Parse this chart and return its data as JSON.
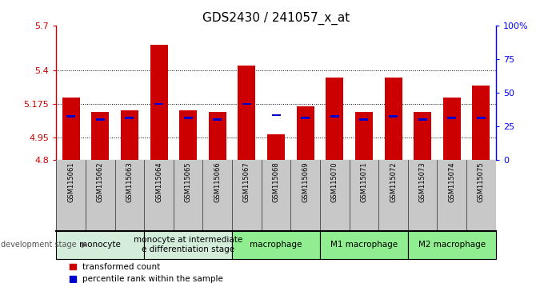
{
  "title": "GDS2430 / 241057_x_at",
  "samples": [
    "GSM115061",
    "GSM115062",
    "GSM115063",
    "GSM115064",
    "GSM115065",
    "GSM115066",
    "GSM115067",
    "GSM115068",
    "GSM115069",
    "GSM115070",
    "GSM115071",
    "GSM115072",
    "GSM115073",
    "GSM115074",
    "GSM115075"
  ],
  "red_values": [
    5.22,
    5.12,
    5.13,
    5.57,
    5.13,
    5.12,
    5.43,
    4.97,
    5.16,
    5.35,
    5.12,
    5.35,
    5.12,
    5.22,
    5.3
  ],
  "blue_values": [
    5.09,
    5.07,
    5.08,
    5.175,
    5.08,
    5.07,
    5.175,
    5.1,
    5.08,
    5.09,
    5.07,
    5.09,
    5.07,
    5.08,
    5.08
  ],
  "ymin": 4.8,
  "ymax": 5.7,
  "yticks_left": [
    4.8,
    4.95,
    5.175,
    5.4,
    5.7
  ],
  "ytick_labels_left": [
    "4.8",
    "4.95",
    "5.175",
    "5.4",
    "5.7"
  ],
  "y2min": 0,
  "y2max": 100,
  "yticks_right": [
    0,
    25,
    50,
    75,
    100
  ],
  "ytick_labels_right": [
    "0",
    "25",
    "50",
    "75",
    "100%"
  ],
  "grid_lines": [
    4.95,
    5.175,
    5.4
  ],
  "groups": [
    {
      "label": "monocyte",
      "indices": [
        0,
        1,
        2
      ],
      "color": "#d4edda"
    },
    {
      "label": "monocyte at intermediate\ne differentiation stage",
      "indices": [
        3,
        4,
        5
      ],
      "color": "#d4edda"
    },
    {
      "label": "macrophage",
      "indices": [
        6,
        7,
        8
      ],
      "color": "#90EE90"
    },
    {
      "label": "M1 macrophage",
      "indices": [
        9,
        10,
        11
      ],
      "color": "#90EE90"
    },
    {
      "label": "M2 macrophage",
      "indices": [
        12,
        13,
        14
      ],
      "color": "#90EE90"
    }
  ],
  "bar_width": 0.6,
  "blue_bar_width": 0.3,
  "blue_bar_height": 0.015,
  "bar_base": 4.8,
  "legend_red": "transformed count",
  "legend_blue": "percentile rank within the sample",
  "red_color": "#cc0000",
  "blue_color": "#0000cc",
  "sample_bg_color": "#c8c8c8",
  "title_fontsize": 11,
  "tick_fontsize": 8,
  "sample_fontsize": 6,
  "group_fontsize": 7.5,
  "legend_fontsize": 7.5
}
